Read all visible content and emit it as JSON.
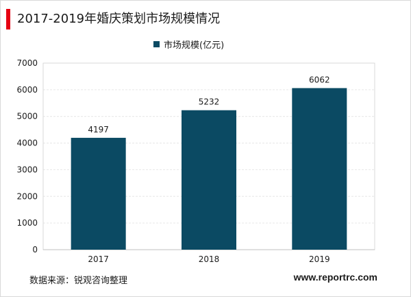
{
  "chart_data": {
    "type": "bar",
    "title": "2017-2019年婚庆策划市场规模情况",
    "categories": [
      "2017",
      "2018",
      "2019"
    ],
    "series": [
      {
        "name": "市场规模(亿元)",
        "values": [
          4197,
          5232,
          6062
        ],
        "color": "#0b4a63"
      }
    ],
    "data_labels": [
      "4197",
      "5232",
      "6062"
    ],
    "ylim": [
      0,
      7000
    ],
    "yticks": [
      "0",
      "1000",
      "2000",
      "3000",
      "4000",
      "5000",
      "6000",
      "7000"
    ],
    "grid": true,
    "legend_position": "top-center"
  },
  "footer": {
    "source": "数据来源：锐观咨询整理",
    "website": "www.reportrc.com"
  },
  "colors": {
    "accent": "#e60012",
    "bar": "#0b4a63",
    "grid": "#e6e6e6"
  }
}
